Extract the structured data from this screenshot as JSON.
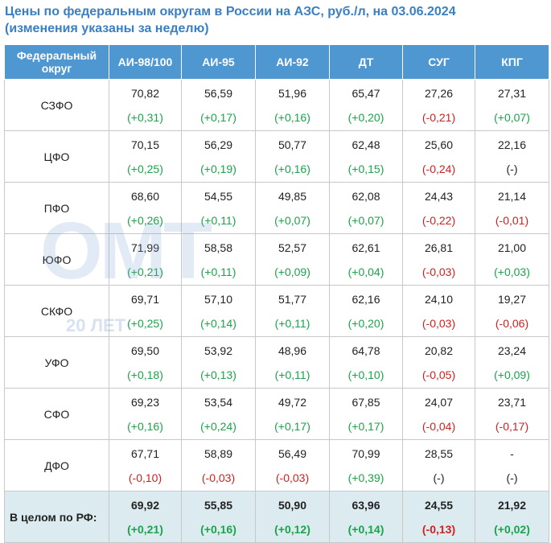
{
  "header": {
    "title": "Цены по федеральным округам в России на АЗС, руб./л, на 03.06.2024",
    "subtitle": "(изменения указаны за неделю)"
  },
  "watermark": {
    "logo": "ОМТ",
    "text": "20 ЛЕТ"
  },
  "table": {
    "columns": [
      "Федеральный округ",
      "АИ-98/100",
      "АИ-95",
      "АИ-92",
      "ДТ",
      "СУГ",
      "КПГ"
    ],
    "rows": [
      {
        "region": "СЗФО",
        "cells": [
          [
            "70,82",
            "(+0,31)"
          ],
          [
            "56,59",
            "(+0,17)"
          ],
          [
            "51,96",
            "(+0,16)"
          ],
          [
            "65,47",
            "(+0,20)"
          ],
          [
            "27,26",
            "(-0,21)"
          ],
          [
            "27,31",
            "(+0,07)"
          ]
        ]
      },
      {
        "region": "ЦФО",
        "cells": [
          [
            "70,15",
            "(+0,25)"
          ],
          [
            "56,29",
            "(+0,19)"
          ],
          [
            "50,77",
            "(+0,16)"
          ],
          [
            "62,48",
            "(+0,15)"
          ],
          [
            "25,60",
            "(-0,24)"
          ],
          [
            "22,16",
            "(-)"
          ]
        ]
      },
      {
        "region": "ПФО",
        "cells": [
          [
            "68,60",
            "(+0,26)"
          ],
          [
            "54,55",
            "(+0,11)"
          ],
          [
            "49,85",
            "(+0,07)"
          ],
          [
            "62,08",
            "(+0,07)"
          ],
          [
            "24,43",
            "(-0,22)"
          ],
          [
            "21,14",
            "(-0,01)"
          ]
        ]
      },
      {
        "region": "ЮФО",
        "cells": [
          [
            "71,99",
            "(+0,21)"
          ],
          [
            "58,58",
            "(+0,11)"
          ],
          [
            "52,57",
            "(+0,09)"
          ],
          [
            "62,61",
            "(+0,04)"
          ],
          [
            "26,81",
            "(-0,03)"
          ],
          [
            "21,00",
            "(+0,03)"
          ]
        ]
      },
      {
        "region": "СКФО",
        "cells": [
          [
            "69,71",
            "(+0,25)"
          ],
          [
            "57,10",
            "(+0,14)"
          ],
          [
            "51,77",
            "(+0,11)"
          ],
          [
            "62,16",
            "(+0,20)"
          ],
          [
            "24,10",
            "(-0,03)"
          ],
          [
            "19,27",
            "(-0,06)"
          ]
        ]
      },
      {
        "region": "УФО",
        "cells": [
          [
            "69,50",
            "(+0,18)"
          ],
          [
            "53,92",
            "(+0,13)"
          ],
          [
            "48,96",
            "(+0,11)"
          ],
          [
            "64,78",
            "(+0,10)"
          ],
          [
            "20,82",
            "(-0,05)"
          ],
          [
            "23,24",
            "(+0,09)"
          ]
        ]
      },
      {
        "region": "СФО",
        "cells": [
          [
            "69,23",
            "(+0,16)"
          ],
          [
            "53,54",
            "(+0,24)"
          ],
          [
            "49,72",
            "(+0,17)"
          ],
          [
            "67,85",
            "(+0,17)"
          ],
          [
            "24,07",
            "(-0,04)"
          ],
          [
            "23,71",
            "(-0,17)"
          ]
        ]
      },
      {
        "region": "ДФО",
        "cells": [
          [
            "67,71",
            "(-0,10)"
          ],
          [
            "58,89",
            "(-0,03)"
          ],
          [
            "56,49",
            "(-0,03)"
          ],
          [
            "70,99",
            "(+0,39)"
          ],
          [
            "28,55",
            "(-)"
          ],
          [
            "-",
            "(-)"
          ]
        ]
      }
    ],
    "total": {
      "region": "В целом по РФ:",
      "cells": [
        [
          "69,92",
          "(+0,21)"
        ],
        [
          "55,85",
          "(+0,16)"
        ],
        [
          "50,90",
          "(+0,12)"
        ],
        [
          "63,96",
          "(+0,14)"
        ],
        [
          "24,55",
          "(-0,13)"
        ],
        [
          "21,92",
          "(+0,02)"
        ]
      ]
    }
  }
}
